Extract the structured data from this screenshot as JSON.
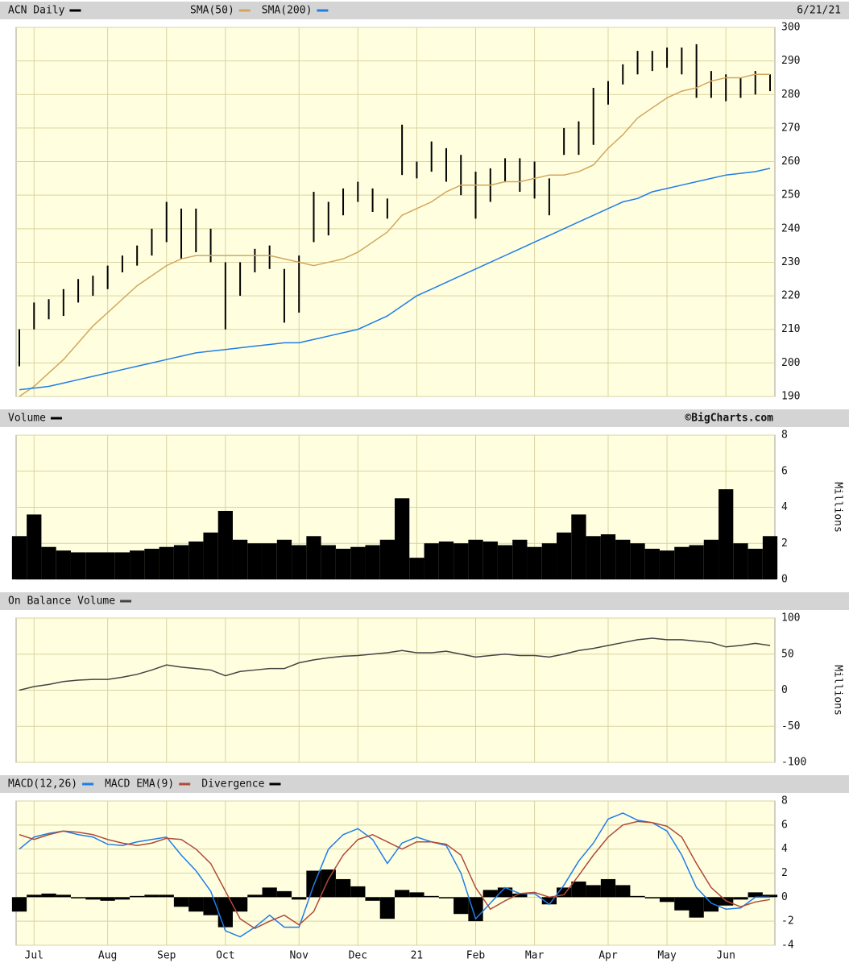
{
  "chart_data": [
    {
      "type": "ohlc",
      "title": "ACN Daily",
      "color": "#000000",
      "date": "6/21/21",
      "high": [
        210,
        218,
        219,
        222,
        225,
        226,
        229,
        232,
        235,
        240,
        248,
        246,
        246,
        240,
        230,
        230,
        234,
        235,
        228,
        232,
        251,
        248,
        252,
        254,
        252,
        249,
        271,
        260,
        266,
        264,
        262,
        257,
        258,
        261,
        261,
        260,
        255,
        270,
        272,
        282,
        284,
        289,
        293,
        293,
        294,
        294,
        295,
        287,
        286,
        285,
        287,
        286
      ],
      "low": [
        199,
        210,
        213,
        214,
        218,
        220,
        222,
        227,
        229,
        232,
        236,
        231,
        233,
        230,
        210,
        220,
        227,
        228,
        212,
        215,
        236,
        238,
        244,
        248,
        245,
        243,
        256,
        255,
        257,
        254,
        250,
        243,
        248,
        254,
        251,
        249,
        244,
        262,
        262,
        265,
        277,
        283,
        286,
        287,
        288,
        286,
        279,
        279,
        278,
        279,
        280,
        281
      ],
      "series": [
        {
          "name": "SMA(50)",
          "color": "#d4a55a",
          "values": [
            190,
            193,
            197,
            201,
            206,
            211,
            215,
            219,
            223,
            226,
            229,
            231,
            232,
            232,
            232,
            232,
            232,
            232,
            231,
            230,
            229,
            230,
            231,
            233,
            236,
            239,
            244,
            246,
            248,
            251,
            253,
            253,
            253,
            254,
            254,
            255,
            256,
            256,
            257,
            259,
            264,
            268,
            273,
            276,
            279,
            281,
            282,
            284,
            285,
            285,
            286,
            286
          ]
        },
        {
          "name": "SMA(200)",
          "color": "#1f7de8",
          "values": [
            192,
            192.5,
            193,
            194,
            195,
            196,
            197,
            198,
            199,
            200,
            201,
            202,
            203,
            203.5,
            204,
            204.5,
            205,
            205.5,
            206,
            206,
            207,
            208,
            209,
            210,
            212,
            214,
            217,
            220,
            222,
            224,
            226,
            228,
            230,
            232,
            234,
            236,
            238,
            240,
            242,
            244,
            246,
            248,
            249,
            251,
            252,
            253,
            254,
            255,
            256,
            256.5,
            257,
            258
          ]
        }
      ],
      "ylim": [
        190,
        300
      ],
      "yticks": [
        190,
        200,
        210,
        220,
        230,
        240,
        250,
        260,
        270,
        280,
        290,
        300
      ],
      "grid": true
    },
    {
      "type": "bar",
      "title": "Volume",
      "color": "#000000",
      "source": "©BigCharts.com",
      "y_label": "Millions",
      "values": [
        2.4,
        3.6,
        1.8,
        1.6,
        1.5,
        1.5,
        1.5,
        1.5,
        1.6,
        1.7,
        1.8,
        1.9,
        2.1,
        2.6,
        3.8,
        2.2,
        2.0,
        2.0,
        2.2,
        1.9,
        2.4,
        1.9,
        1.7,
        1.8,
        1.9,
        2.2,
        4.5,
        1.2,
        2.0,
        2.1,
        2.0,
        2.2,
        2.1,
        1.9,
        2.2,
        1.8,
        2.0,
        2.6,
        3.6,
        2.4,
        2.5,
        2.2,
        2.0,
        1.7,
        1.6,
        1.8,
        1.9,
        2.2,
        5.0,
        2.0,
        1.7,
        2.4
      ],
      "ylim": [
        0,
        8
      ],
      "yticks": [
        0,
        2,
        4,
        6,
        8
      ],
      "grid": true
    },
    {
      "type": "line",
      "title": "On Balance Volume",
      "color": "#444444",
      "y_label": "Millions",
      "values": [
        0,
        5,
        8,
        12,
        14,
        15,
        15,
        18,
        22,
        28,
        35,
        32,
        30,
        28,
        20,
        26,
        28,
        30,
        30,
        38,
        42,
        45,
        47,
        48,
        50,
        52,
        55,
        52,
        52,
        54,
        50,
        46,
        48,
        50,
        48,
        48,
        46,
        50,
        55,
        58,
        62,
        66,
        70,
        72,
        70,
        70,
        68,
        66,
        60,
        62,
        65,
        62
      ],
      "ylim": [
        -100,
        100
      ],
      "yticks": [
        -100,
        -50,
        0,
        50,
        100
      ],
      "grid": true
    },
    {
      "type": "macd",
      "categories": [
        null,
        "Jul",
        null,
        null,
        null,
        null,
        "Aug",
        null,
        null,
        null,
        "Sep",
        null,
        null,
        null,
        "Oct",
        null,
        null,
        null,
        null,
        "Nov",
        null,
        null,
        null,
        "Dec",
        null,
        null,
        null,
        "21",
        null,
        null,
        null,
        "Feb",
        null,
        null,
        null,
        "Mar",
        null,
        null,
        null,
        null,
        "Apr",
        null,
        null,
        null,
        "May",
        null,
        null,
        null,
        "Jun",
        null,
        null,
        null
      ],
      "series": [
        {
          "name": "MACD(12,26)",
          "color": "#1f7de8",
          "values": [
            4.0,
            5.0,
            5.3,
            5.5,
            5.2,
            5.0,
            4.4,
            4.3,
            4.6,
            4.8,
            5.0,
            3.5,
            2.2,
            0.5,
            -2.8,
            -3.3,
            -2.5,
            -1.5,
            -2.5,
            -2.5,
            1.0,
            4.0,
            5.2,
            5.7,
            4.8,
            2.8,
            4.5,
            5.0,
            4.6,
            4.3,
            2.0,
            -1.8,
            -0.5,
            0.8,
            0.3,
            0.3,
            -0.6,
            1.0,
            3.0,
            4.5,
            6.5,
            7.0,
            6.4,
            6.2,
            5.5,
            3.5,
            0.8,
            -0.5,
            -1.0,
            -0.9,
            0.0,
            0.0
          ]
        },
        {
          "name": "MACD EMA(9)",
          "color": "#b04a3a",
          "values": [
            5.2,
            4.8,
            5.2,
            5.5,
            5.4,
            5.2,
            4.8,
            4.5,
            4.3,
            4.5,
            4.9,
            4.8,
            4.0,
            2.8,
            0.5,
            -1.8,
            -2.6,
            -2.0,
            -1.5,
            -2.3,
            -1.2,
            1.5,
            3.5,
            4.8,
            5.2,
            4.6,
            4.0,
            4.6,
            4.6,
            4.4,
            3.5,
            0.8,
            -1.0,
            -0.3,
            0.3,
            0.4,
            0.0,
            0.2,
            1.8,
            3.5,
            5.0,
            6.0,
            6.3,
            6.2,
            5.9,
            5.0,
            2.8,
            0.8,
            -0.3,
            -0.8,
            -0.4,
            -0.2
          ]
        },
        {
          "name": "Divergence",
          "color": "#000000",
          "type": "bar",
          "values": [
            -1.2,
            0.2,
            0.3,
            0.2,
            -0.1,
            -0.2,
            -0.3,
            -0.2,
            0.1,
            0.2,
            0.2,
            -0.8,
            -1.2,
            -1.5,
            -2.5,
            -1.2,
            0.2,
            0.8,
            0.5,
            -0.2,
            2.2,
            2.3,
            1.5,
            0.9,
            -0.3,
            -1.8,
            0.6,
            0.4,
            0.1,
            -0.1,
            -1.4,
            -2.0,
            0.6,
            0.8,
            0.3,
            0.0,
            -0.6,
            0.8,
            1.3,
            1.0,
            1.5,
            1.0,
            0.1,
            -0.1,
            -0.4,
            -1.1,
            -1.7,
            -1.2,
            -0.7,
            -0.2,
            0.4,
            0.2
          ]
        }
      ],
      "ylim": [
        -4,
        8
      ],
      "yticks": [
        -4,
        -2,
        0,
        2,
        4,
        6,
        8
      ],
      "grid": true
    }
  ]
}
